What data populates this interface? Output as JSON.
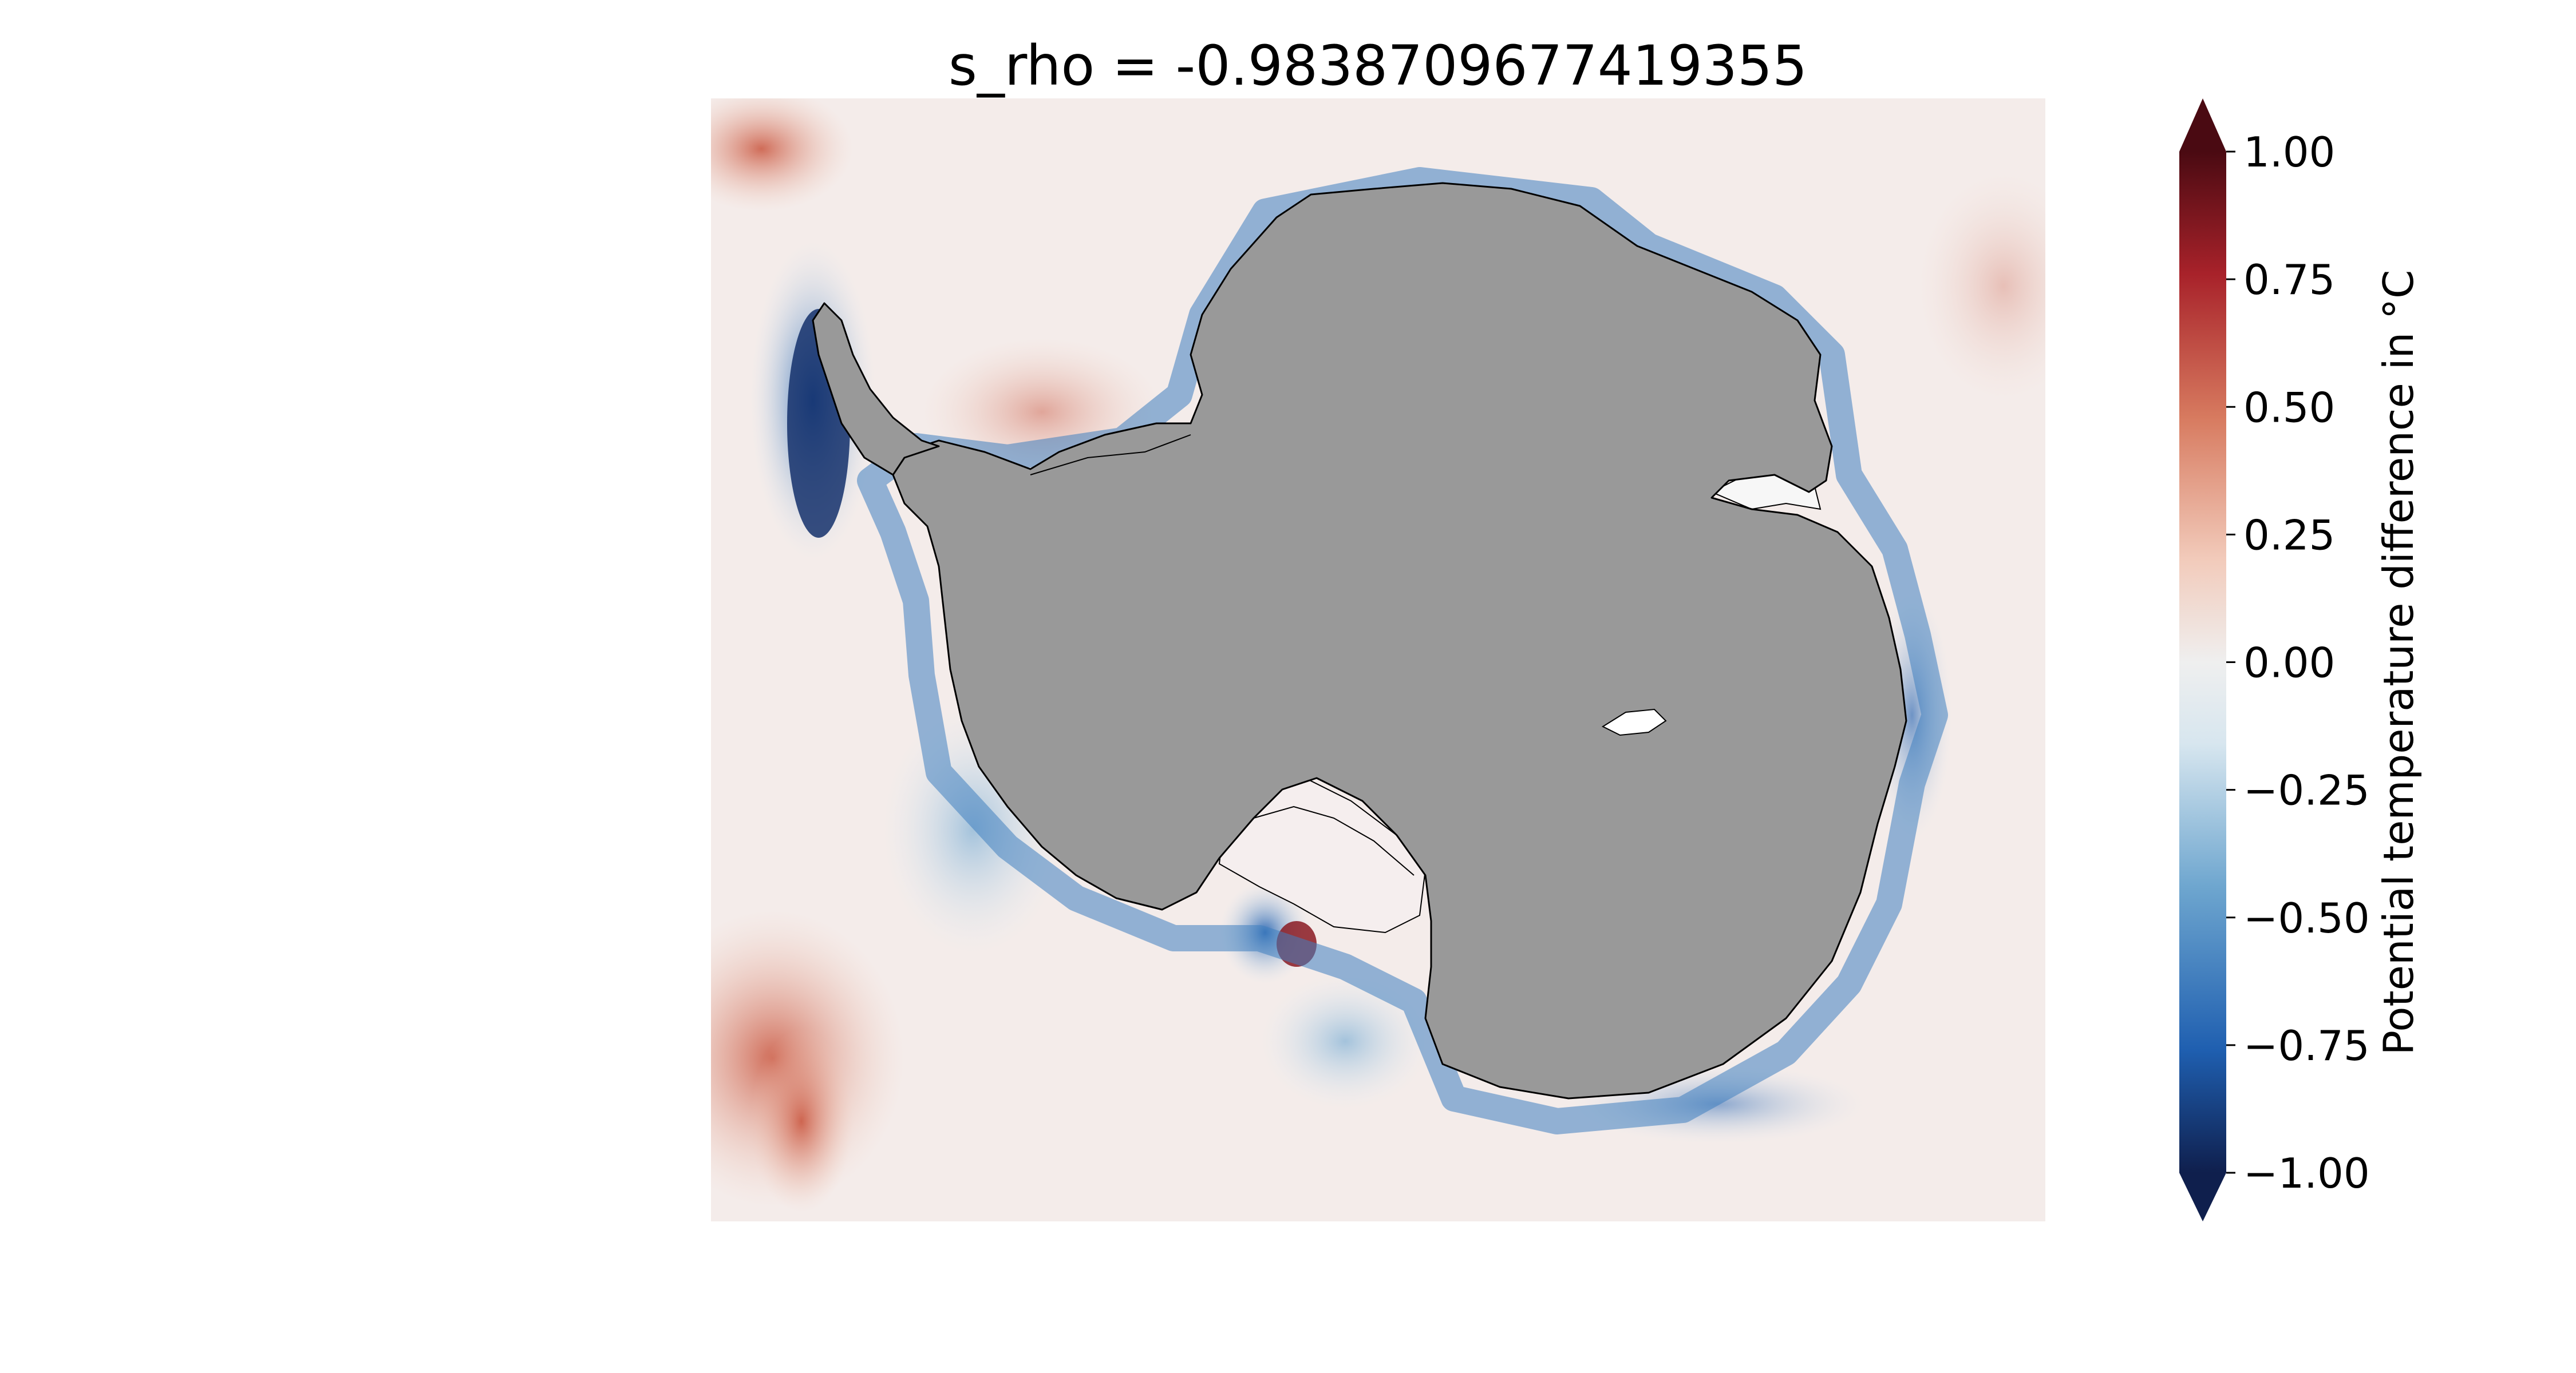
{
  "title": "s_rho = -0.9838709677419355",
  "colorbar": {
    "label": "Potential temperature difference in °C",
    "ticks": [
      "1.00",
      "0.75",
      "0.50",
      "0.25",
      "0.00",
      "−0.25",
      "−0.50",
      "−0.75",
      "−1.00"
    ],
    "tick_values": [
      1.0,
      0.75,
      0.5,
      0.25,
      0.0,
      -0.25,
      -0.5,
      -0.75,
      -1.0
    ],
    "range": [
      -1.0,
      1.0
    ],
    "extend": "both",
    "colormap": "RdBu_r (dark blue → white → dark red)",
    "colors": [
      "#0f1f4d",
      "#1f5fb0",
      "#6ea6cf",
      "#d7e6ef",
      "#efefef",
      "#f2cbbb",
      "#d77a5f",
      "#a8222a",
      "#4a0a12"
    ]
  },
  "map": {
    "land_color": "#999999",
    "ocean_base_color": "#f4ecea",
    "coastline_color": "#000000"
  }
}
